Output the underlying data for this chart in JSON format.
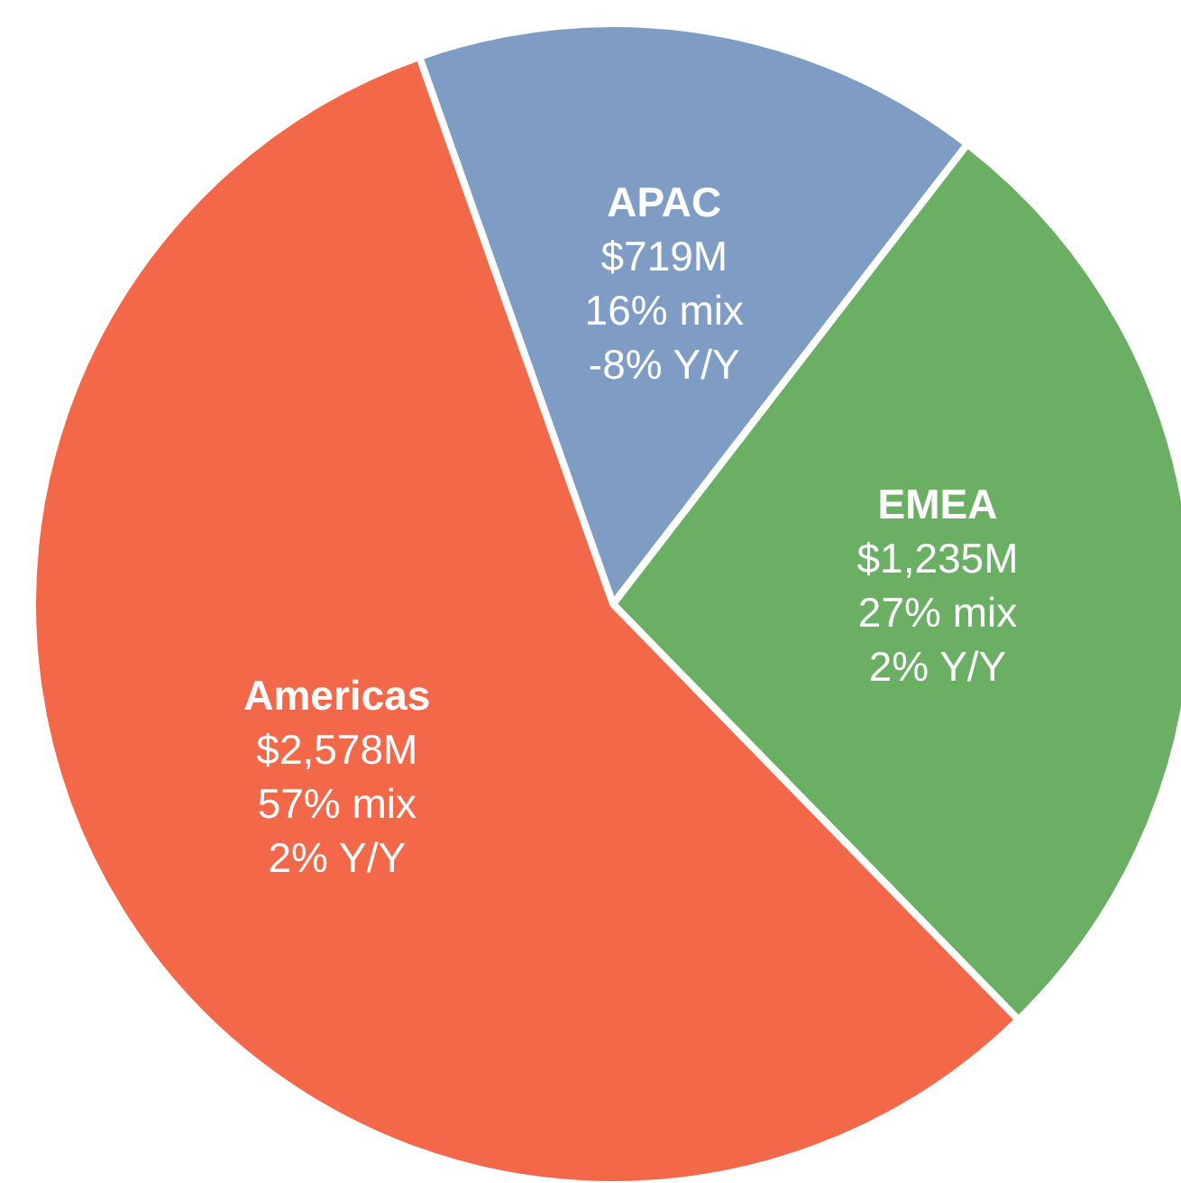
{
  "chart_data": {
    "type": "pie",
    "categories": [
      "APAC",
      "EMEA",
      "Americas"
    ],
    "values": [
      719,
      1235,
      2578
    ],
    "colors": [
      "#7f9cc4",
      "#6aaf64",
      "#f26849"
    ],
    "value_labels": [
      "$719M",
      "$1,235M",
      "$2,578M"
    ],
    "annotations": [
      "16% mix\n-8% Y/Y",
      "27% mix\n2% Y/Y",
      "57% mix\n2% Y/Y"
    ]
  }
}
